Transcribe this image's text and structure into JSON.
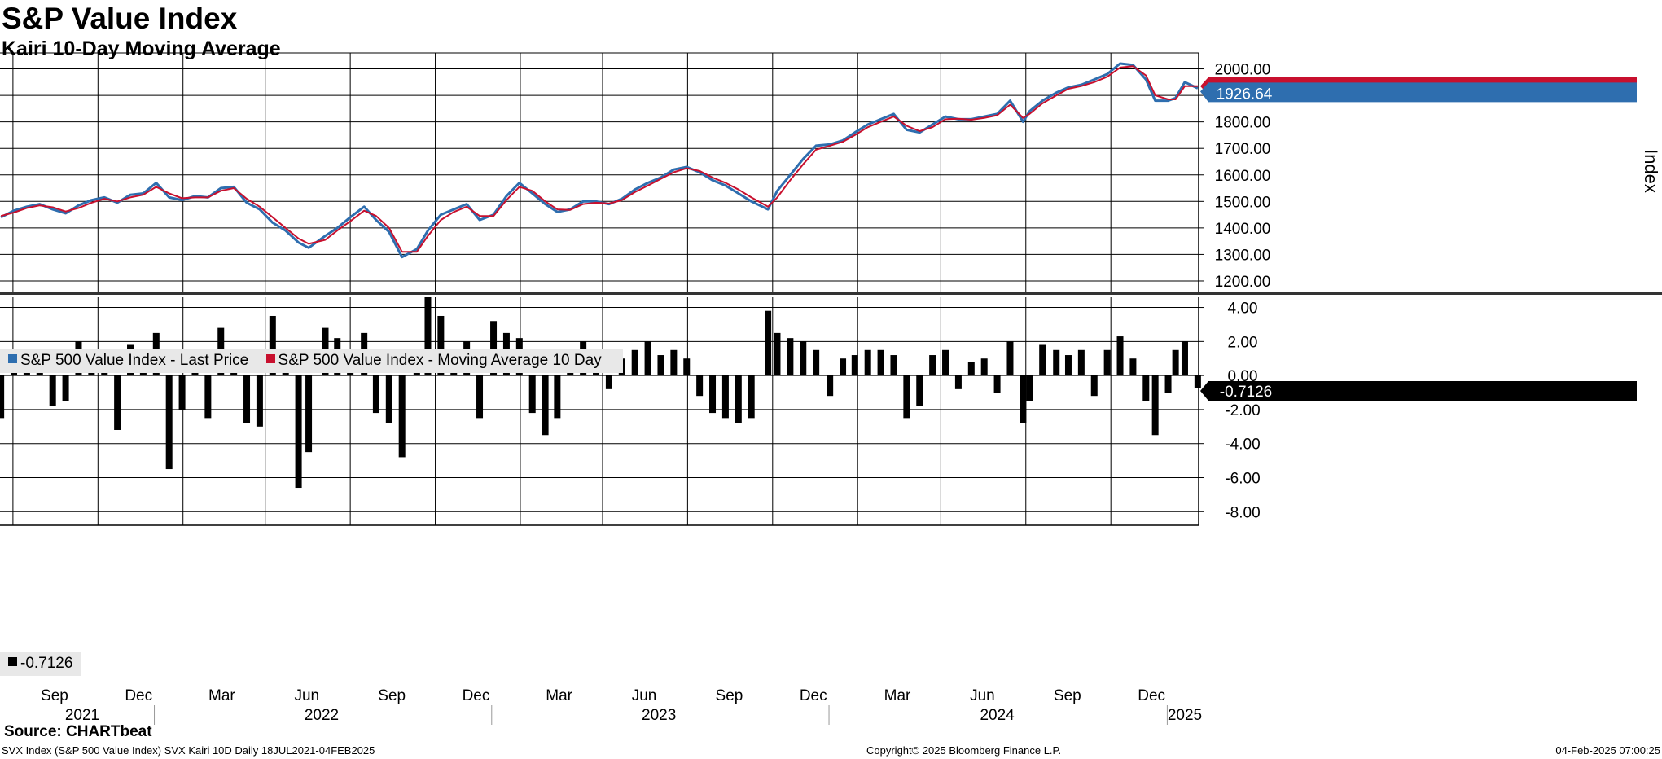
{
  "header": {
    "title": "S&P Value Index",
    "subtitle": "Kairi 10-Day Moving Average"
  },
  "footer": {
    "source": "Source: CHARTbeat",
    "left": "SVX Index (S&P 500 Value Index) SVX Kairi 10D  Daily 18JUL2021-04FEB2025",
    "center": "Copyright© 2025 Bloomberg Finance L.P.",
    "right": "04-Feb-2025 07:00:25"
  },
  "colors": {
    "price": "#2e6eaf",
    "ma": "#c8102e",
    "kairi": "#000000",
    "grid": "#000000"
  },
  "chart_data": [
    {
      "type": "line",
      "ylabel": "Index",
      "ylim": [
        1160,
        2060
      ],
      "yticks": [
        "2000.00",
        "1900.00",
        "1800.00",
        "1700.00",
        "1600.00",
        "1500.00",
        "1400.00",
        "1300.00",
        "1200.00"
      ],
      "x_start": "2021-07-18",
      "x_end": "2025-02-04",
      "last_value_label": "1926.64",
      "legend_position": "bottom-left",
      "series": [
        {
          "name": "S&P 500 Value Index - Last Price",
          "color": "#2e6eaf",
          "x": [
            "2021-07-19",
            "2021-08-02",
            "2021-08-16",
            "2021-08-30",
            "2021-09-13",
            "2021-09-27",
            "2021-10-11",
            "2021-10-25",
            "2021-11-08",
            "2021-11-22",
            "2021-12-06",
            "2021-12-20",
            "2022-01-03",
            "2022-01-17",
            "2022-01-31",
            "2022-02-14",
            "2022-02-28",
            "2022-03-14",
            "2022-03-28",
            "2022-04-11",
            "2022-04-25",
            "2022-05-09",
            "2022-05-23",
            "2022-06-06",
            "2022-06-17",
            "2022-07-05",
            "2022-07-18",
            "2022-08-01",
            "2022-08-16",
            "2022-08-29",
            "2022-09-12",
            "2022-09-26",
            "2022-10-12",
            "2022-10-24",
            "2022-11-07",
            "2022-11-21",
            "2022-12-05",
            "2022-12-19",
            "2023-01-03",
            "2023-01-17",
            "2023-01-31",
            "2023-02-14",
            "2023-02-28",
            "2023-03-13",
            "2023-03-27",
            "2023-04-10",
            "2023-04-24",
            "2023-05-08",
            "2023-05-22",
            "2023-06-05",
            "2023-06-19",
            "2023-07-03",
            "2023-07-17",
            "2023-07-31",
            "2023-08-14",
            "2023-08-28",
            "2023-09-11",
            "2023-09-25",
            "2023-10-09",
            "2023-10-27",
            "2023-11-06",
            "2023-11-20",
            "2023-12-04",
            "2023-12-18",
            "2024-01-02",
            "2024-01-16",
            "2024-01-29",
            "2024-02-12",
            "2024-02-26",
            "2024-03-11",
            "2024-03-25",
            "2024-04-08",
            "2024-04-22",
            "2024-05-06",
            "2024-05-20",
            "2024-06-03",
            "2024-06-17",
            "2024-07-01",
            "2024-07-15",
            "2024-07-29",
            "2024-08-05",
            "2024-08-19",
            "2024-09-03",
            "2024-09-16",
            "2024-09-30",
            "2024-10-14",
            "2024-10-28",
            "2024-11-11",
            "2024-11-25",
            "2024-12-09",
            "2024-12-19",
            "2025-01-02",
            "2025-01-10",
            "2025-01-20",
            "2025-02-03"
          ],
          "values": [
            1440,
            1465,
            1480,
            1490,
            1470,
            1455,
            1485,
            1505,
            1515,
            1495,
            1525,
            1530,
            1570,
            1515,
            1505,
            1520,
            1515,
            1550,
            1555,
            1495,
            1470,
            1420,
            1390,
            1345,
            1325,
            1370,
            1400,
            1440,
            1480,
            1430,
            1385,
            1290,
            1320,
            1390,
            1450,
            1470,
            1490,
            1430,
            1450,
            1520,
            1570,
            1530,
            1490,
            1460,
            1470,
            1500,
            1500,
            1490,
            1510,
            1545,
            1570,
            1590,
            1620,
            1630,
            1610,
            1580,
            1560,
            1530,
            1500,
            1470,
            1540,
            1600,
            1660,
            1710,
            1715,
            1730,
            1760,
            1790,
            1810,
            1830,
            1770,
            1760,
            1790,
            1820,
            1810,
            1810,
            1820,
            1830,
            1880,
            1800,
            1840,
            1880,
            1910,
            1930,
            1940,
            1960,
            1980,
            2020,
            2015,
            1960,
            1880,
            1880,
            1890,
            1950,
            1926.64
          ]
        },
        {
          "name": "S&P 500 Value Index - Moving Average 10 Day",
          "color": "#c8102e",
          "x": [
            "2021-07-19",
            "2021-08-02",
            "2021-08-16",
            "2021-08-30",
            "2021-09-13",
            "2021-09-27",
            "2021-10-11",
            "2021-10-25",
            "2021-11-08",
            "2021-11-22",
            "2021-12-06",
            "2021-12-20",
            "2022-01-03",
            "2022-01-17",
            "2022-01-31",
            "2022-02-14",
            "2022-02-28",
            "2022-03-14",
            "2022-03-28",
            "2022-04-11",
            "2022-04-25",
            "2022-05-09",
            "2022-05-23",
            "2022-06-06",
            "2022-06-17",
            "2022-07-05",
            "2022-07-18",
            "2022-08-01",
            "2022-08-16",
            "2022-08-29",
            "2022-09-12",
            "2022-09-26",
            "2022-10-12",
            "2022-10-24",
            "2022-11-07",
            "2022-11-21",
            "2022-12-05",
            "2022-12-19",
            "2023-01-03",
            "2023-01-17",
            "2023-01-31",
            "2023-02-14",
            "2023-02-28",
            "2023-03-13",
            "2023-03-27",
            "2023-04-10",
            "2023-04-24",
            "2023-05-08",
            "2023-05-22",
            "2023-06-05",
            "2023-06-19",
            "2023-07-03",
            "2023-07-17",
            "2023-07-31",
            "2023-08-14",
            "2023-08-28",
            "2023-09-11",
            "2023-09-25",
            "2023-10-09",
            "2023-10-27",
            "2023-11-06",
            "2023-11-20",
            "2023-12-04",
            "2023-12-18",
            "2024-01-02",
            "2024-01-16",
            "2024-01-29",
            "2024-02-12",
            "2024-02-26",
            "2024-03-11",
            "2024-03-25",
            "2024-04-08",
            "2024-04-22",
            "2024-05-06",
            "2024-05-20",
            "2024-06-03",
            "2024-06-17",
            "2024-07-01",
            "2024-07-15",
            "2024-07-29",
            "2024-08-05",
            "2024-08-19",
            "2024-09-03",
            "2024-09-16",
            "2024-09-30",
            "2024-10-14",
            "2024-10-28",
            "2024-11-11",
            "2024-11-25",
            "2024-12-09",
            "2024-12-19",
            "2025-01-02",
            "2025-01-10",
            "2025-01-20",
            "2025-02-03"
          ],
          "values": [
            1445,
            1458,
            1475,
            1485,
            1478,
            1462,
            1475,
            1495,
            1510,
            1500,
            1515,
            1525,
            1555,
            1530,
            1512,
            1515,
            1515,
            1540,
            1550,
            1510,
            1480,
            1440,
            1400,
            1360,
            1340,
            1355,
            1390,
            1425,
            1465,
            1445,
            1400,
            1310,
            1310,
            1370,
            1430,
            1460,
            1480,
            1445,
            1445,
            1505,
            1555,
            1540,
            1500,
            1470,
            1468,
            1490,
            1495,
            1492,
            1505,
            1535,
            1560,
            1585,
            1610,
            1625,
            1615,
            1590,
            1570,
            1545,
            1515,
            1480,
            1515,
            1580,
            1640,
            1695,
            1710,
            1725,
            1750,
            1780,
            1800,
            1820,
            1785,
            1765,
            1780,
            1810,
            1812,
            1808,
            1815,
            1825,
            1865,
            1815,
            1830,
            1870,
            1900,
            1925,
            1935,
            1950,
            1970,
            2005,
            2010,
            1975,
            1900,
            1885,
            1885,
            1935,
            1935
          ]
        }
      ]
    },
    {
      "type": "bar",
      "ylabel": "",
      "ylim": [
        -8.8,
        4.6
      ],
      "yticks": [
        "4.00",
        "2.00",
        "0.00",
        "-2.00",
        "-4.00",
        "-6.00",
        "-8.00"
      ],
      "last_value_label": "-0.7126",
      "legend_label": "-0.7126",
      "series": [
        {
          "name": "Kairi 10-Day",
          "color": "#000000",
          "x": [
            "2021-07-19",
            "2021-08-02",
            "2021-08-16",
            "2021-08-30",
            "2021-09-13",
            "2021-09-27",
            "2021-10-11",
            "2021-10-25",
            "2021-11-08",
            "2021-11-22",
            "2021-12-06",
            "2021-12-20",
            "2022-01-03",
            "2022-01-17",
            "2022-01-31",
            "2022-02-14",
            "2022-02-28",
            "2022-03-14",
            "2022-03-28",
            "2022-04-11",
            "2022-04-25",
            "2022-05-09",
            "2022-05-23",
            "2022-06-06",
            "2022-06-17",
            "2022-07-05",
            "2022-07-18",
            "2022-08-01",
            "2022-08-16",
            "2022-08-29",
            "2022-09-12",
            "2022-09-26",
            "2022-10-12",
            "2022-10-24",
            "2022-11-07",
            "2022-11-21",
            "2022-12-05",
            "2022-12-19",
            "2023-01-03",
            "2023-01-17",
            "2023-01-31",
            "2023-02-14",
            "2023-02-28",
            "2023-03-13",
            "2023-03-27",
            "2023-04-10",
            "2023-04-24",
            "2023-05-08",
            "2023-05-22",
            "2023-06-05",
            "2023-06-19",
            "2023-07-03",
            "2023-07-17",
            "2023-07-31",
            "2023-08-14",
            "2023-08-28",
            "2023-09-11",
            "2023-09-25",
            "2023-10-09",
            "2023-10-27",
            "2023-11-06",
            "2023-11-20",
            "2023-12-04",
            "2023-12-18",
            "2024-01-02",
            "2024-01-16",
            "2024-01-29",
            "2024-02-12",
            "2024-02-26",
            "2024-03-11",
            "2024-03-25",
            "2024-04-08",
            "2024-04-22",
            "2024-05-06",
            "2024-05-20",
            "2024-06-03",
            "2024-06-17",
            "2024-07-01",
            "2024-07-15",
            "2024-07-29",
            "2024-08-05",
            "2024-08-19",
            "2024-09-03",
            "2024-09-16",
            "2024-09-30",
            "2024-10-14",
            "2024-10-28",
            "2024-11-11",
            "2024-11-25",
            "2024-12-09",
            "2024-12-19",
            "2025-01-02",
            "2025-01-10",
            "2025-01-20",
            "2025-02-03"
          ],
          "values": [
            -2.5,
            1.2,
            1.5,
            0.8,
            -1.8,
            -1.5,
            2.0,
            1.5,
            1.0,
            -3.2,
            1.8,
            0.5,
            2.5,
            -5.5,
            -2.0,
            1.5,
            -2.5,
            2.8,
            0.8,
            -2.8,
            -3.0,
            3.5,
            1.2,
            -6.6,
            -4.5,
            2.8,
            2.2,
            1.5,
            2.5,
            -2.2,
            -2.8,
            -4.8,
            1.5,
            4.6,
            3.5,
            1.2,
            2.0,
            -2.5,
            3.2,
            2.5,
            2.2,
            -2.2,
            -3.5,
            -2.5,
            1.5,
            2.0,
            1.0,
            -0.8,
            1.0,
            1.5,
            2.0,
            1.2,
            1.5,
            1.0,
            -1.2,
            -2.2,
            -2.5,
            -2.8,
            -2.5,
            3.8,
            2.5,
            2.2,
            2.0,
            1.5,
            -1.2,
            1.0,
            1.2,
            1.5,
            1.5,
            1.2,
            -2.5,
            -1.8,
            1.2,
            1.5,
            -0.8,
            0.8,
            1.0,
            -1.0,
            2.0,
            -2.8,
            -1.5,
            1.8,
            1.5,
            1.2,
            1.5,
            -1.2,
            1.5,
            2.3,
            1.0,
            -1.5,
            -3.5,
            -1.0,
            1.5,
            2.0,
            -0.7126
          ]
        }
      ]
    }
  ],
  "x_axis": {
    "months": [
      {
        "label": "Sep",
        "date": "2021-09-15"
      },
      {
        "label": "Dec",
        "date": "2021-12-15"
      },
      {
        "label": "Mar",
        "date": "2022-03-15"
      },
      {
        "label": "Jun",
        "date": "2022-06-15"
      },
      {
        "label": "Sep",
        "date": "2022-09-15"
      },
      {
        "label": "Dec",
        "date": "2022-12-15"
      },
      {
        "label": "Mar",
        "date": "2023-03-15"
      },
      {
        "label": "Jun",
        "date": "2023-06-15"
      },
      {
        "label": "Sep",
        "date": "2023-09-15"
      },
      {
        "label": "Dec",
        "date": "2023-12-15"
      },
      {
        "label": "Mar",
        "date": "2024-03-15"
      },
      {
        "label": "Jun",
        "date": "2024-06-15"
      },
      {
        "label": "Sep",
        "date": "2024-09-15"
      },
      {
        "label": "Dec",
        "date": "2024-12-15"
      }
    ],
    "years": [
      {
        "label": "2021",
        "date": "2021-10-15"
      },
      {
        "label": "2022",
        "date": "2022-07-01"
      },
      {
        "label": "2023",
        "date": "2023-07-01"
      },
      {
        "label": "2024",
        "date": "2024-07-01"
      },
      {
        "label": "2025",
        "date": "2025-01-20"
      }
    ],
    "gridlines": [
      "2021-08-01",
      "2021-11-01",
      "2022-02-01",
      "2022-05-01",
      "2022-08-01",
      "2022-11-01",
      "2023-02-01",
      "2023-05-01",
      "2023-08-01",
      "2023-11-01",
      "2024-02-01",
      "2024-05-01",
      "2024-08-01",
      "2024-11-01"
    ],
    "year_separators": [
      "2022-01-01",
      "2023-01-01",
      "2024-01-01",
      "2025-01-01"
    ]
  }
}
